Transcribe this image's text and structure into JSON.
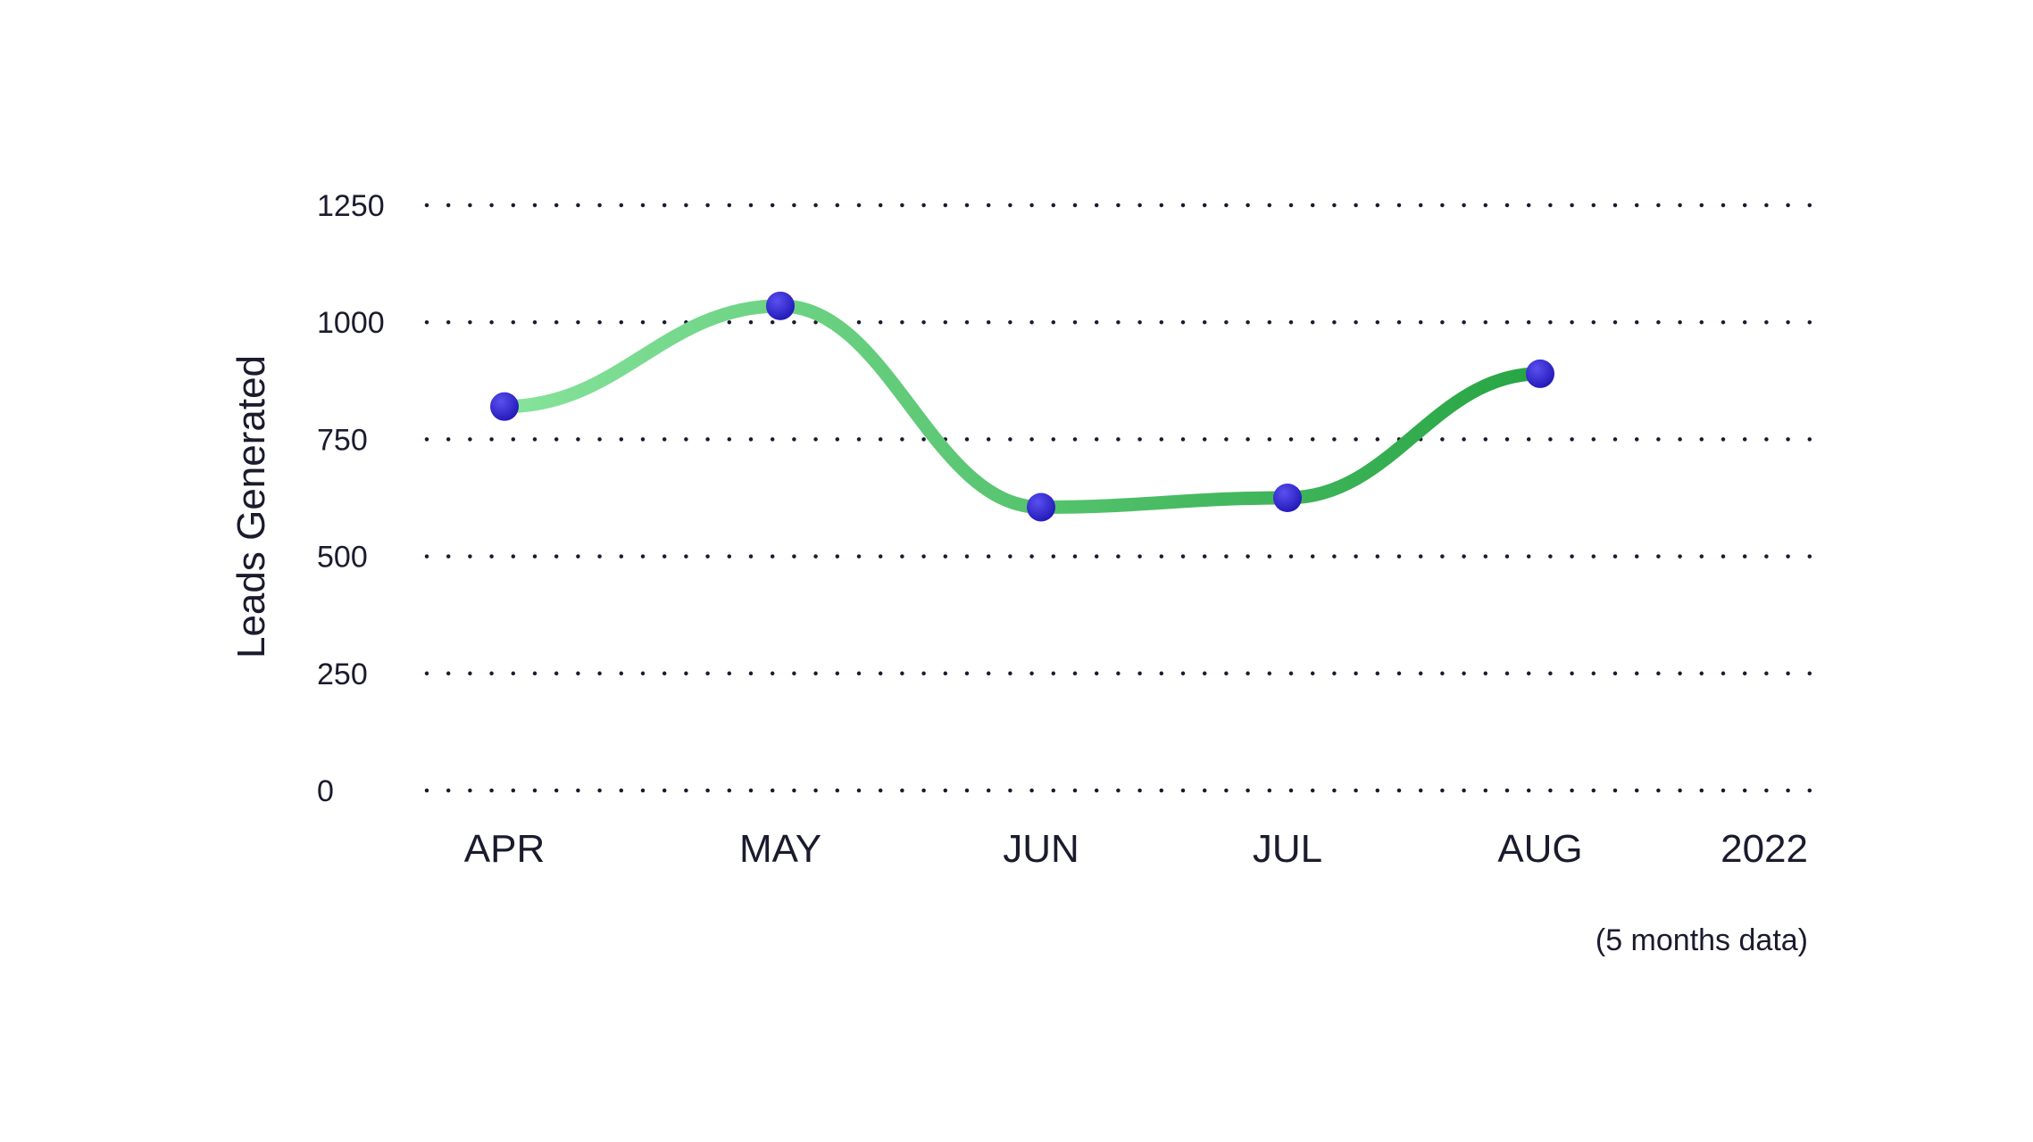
{
  "chart_data": {
    "type": "line",
    "categories": [
      "APR",
      "MAY",
      "JUN",
      "JUL",
      "AUG"
    ],
    "series": [
      {
        "values": [
          820,
          1035,
          605,
          625,
          890
        ]
      }
    ],
    "ylabel": "Leads Generated",
    "xlabel": "",
    "year_label": "2022",
    "note": "(5 months data)",
    "ylim": [
      0,
      1250
    ],
    "yticks": [
      0,
      250,
      500,
      750,
      1000,
      1250
    ],
    "grid": true,
    "smooth": true,
    "colors": {
      "line_start": "#86e39b",
      "line_end": "#27a544",
      "marker": "#2318b8",
      "marker_highlight": "#5a50f0",
      "text": "#1b1b2e"
    }
  }
}
